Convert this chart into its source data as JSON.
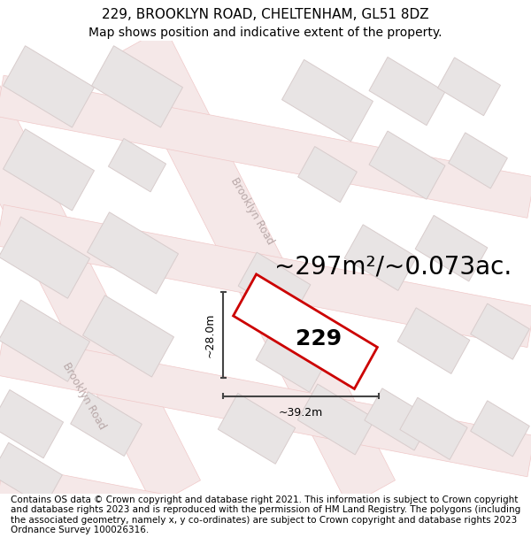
{
  "title_line1": "229, BROOKLYN ROAD, CHELTENHAM, GL51 8DZ",
  "title_line2": "Map shows position and indicative extent of the property.",
  "footer_text": "Contains OS data © Crown copyright and database right 2021. This information is subject to Crown copyright and database rights 2023 and is reproduced with the permission of HM Land Registry. The polygons (including the associated geometry, namely x, y co-ordinates) are subject to Crown copyright and database rights 2023 Ordnance Survey 100026316.",
  "area_label": "~297m²/~0.073ac.",
  "house_number": "229",
  "dim_width": "~39.2m",
  "dim_height": "~28.0m",
  "map_bg": "#faf8f8",
  "road_fill": "#f5e8e8",
  "road_outline": "#f0c8c8",
  "building_fill": "#e8e4e4",
  "building_outline": "#d8cccc",
  "highlight_color": "#cc0000",
  "road_label_color": "#b8a8a8",
  "dim_color": "#444444",
  "title_fontsize": 11,
  "subtitle_fontsize": 10,
  "footer_fontsize": 7.5,
  "area_fontsize": 20,
  "number_fontsize": 18
}
